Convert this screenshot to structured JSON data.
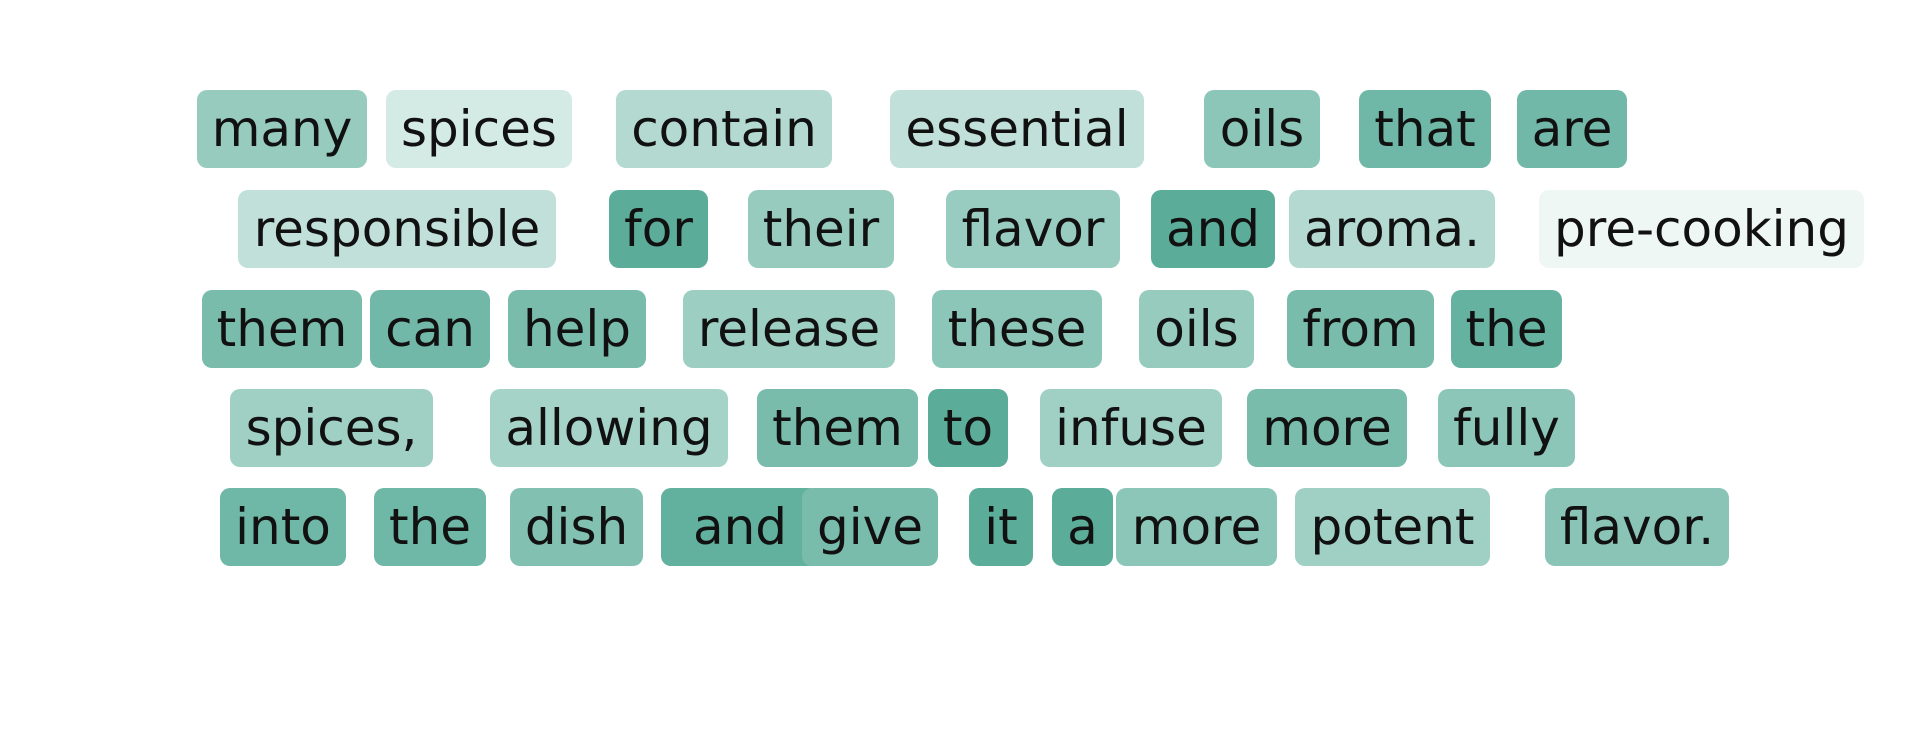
{
  "colors": {
    "base_rgb": [
      91,
      173,
      154
    ],
    "text": "#111111",
    "background": "#ffffff"
  },
  "tokens": [
    {
      "text": "many",
      "weight": 0.64
    },
    {
      "text": "spices",
      "weight": 0.26
    },
    {
      "text": "contain",
      "weight": 0.46
    },
    {
      "text": "essential",
      "weight": 0.38
    },
    {
      "text": "oils",
      "weight": 0.7
    },
    {
      "text": "that",
      "weight": 0.88
    },
    {
      "text": "are",
      "weight": 0.86
    },
    {
      "text": "responsible",
      "weight": 0.38
    },
    {
      "text": "for",
      "weight": 1.0
    },
    {
      "text": "their",
      "weight": 0.64
    },
    {
      "text": "flavor",
      "weight": 0.62
    },
    {
      "text": "and",
      "weight": 1.0
    },
    {
      "text": "aroma.",
      "weight": 0.46
    },
    {
      "text": "pre-cooking",
      "weight": 0.1
    },
    {
      "text": "them",
      "weight": 0.82
    },
    {
      "text": "can",
      "weight": 0.86
    },
    {
      "text": "help",
      "weight": 0.82
    },
    {
      "text": "release",
      "weight": 0.6
    },
    {
      "text": "these",
      "weight": 0.7
    },
    {
      "text": "oils",
      "weight": 0.64
    },
    {
      "text": "from",
      "weight": 0.82
    },
    {
      "text": "the",
      "weight": 0.94
    },
    {
      "text": "spices,",
      "weight": 0.58
    },
    {
      "text": "allowing",
      "weight": 0.54
    },
    {
      "text": "them",
      "weight": 0.82
    },
    {
      "text": "to",
      "weight": 1.0
    },
    {
      "text": "infuse",
      "weight": 0.58
    },
    {
      "text": "more",
      "weight": 0.82
    },
    {
      "text": "fully",
      "weight": 0.7
    },
    {
      "text": "into",
      "weight": 0.88
    },
    {
      "text": "the",
      "weight": 0.88
    },
    {
      "text": "dish",
      "weight": 0.76
    },
    {
      "text": "and",
      "weight": 0.96
    },
    {
      "text": "give",
      "weight": 0.82
    },
    {
      "text": "it",
      "weight": 1.0
    },
    {
      "text": "a",
      "weight": 1.0
    },
    {
      "text": "more",
      "weight": 0.7
    },
    {
      "text": "potent",
      "weight": 0.58
    },
    {
      "text": "flavor.",
      "weight": 0.72
    }
  ]
}
